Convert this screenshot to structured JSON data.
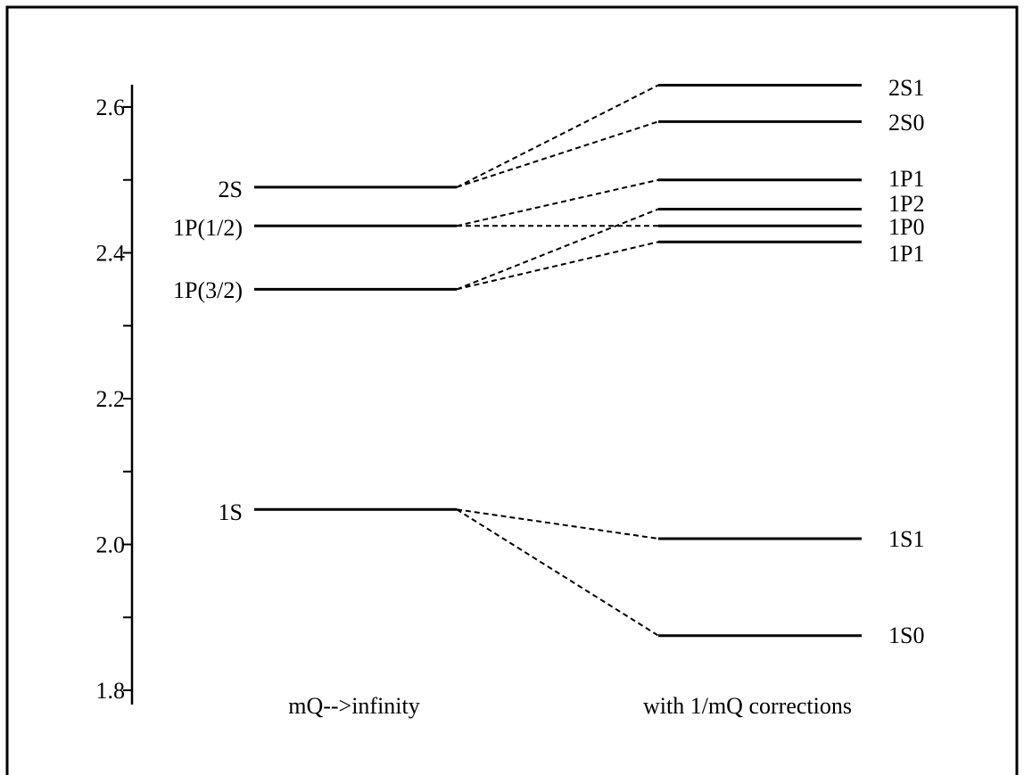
{
  "chart_data": {
    "type": "level-diagram",
    "title": "",
    "ylabel": "",
    "ylim": [
      1.8,
      2.63
    ],
    "yticks": [
      {
        "value": 1.8,
        "label": "1.8"
      },
      {
        "value": 2.0,
        "label": "2.0"
      },
      {
        "value": 2.2,
        "label": "2.2"
      },
      {
        "value": 2.4,
        "label": "2.4"
      },
      {
        "value": 2.6,
        "label": "2.6"
      }
    ],
    "minor_ticks": [
      1.9,
      2.1,
      2.3,
      2.5
    ],
    "columns": [
      {
        "label": "mQ-->infinity"
      },
      {
        "label": "with 1/mQ corrections"
      }
    ],
    "left_levels": [
      {
        "label": "2S",
        "value": 2.49
      },
      {
        "label": "1P(1/2)",
        "value": 2.437
      },
      {
        "label": "1P(3/2)",
        "value": 2.35
      },
      {
        "label": "1S",
        "value": 2.048
      }
    ],
    "right_levels": [
      {
        "label": "2S1",
        "value": 2.63
      },
      {
        "label": "2S0",
        "value": 2.58
      },
      {
        "label": "1P1",
        "value": 2.5
      },
      {
        "label": "1P2",
        "value": 2.46
      },
      {
        "label": "1P0",
        "value": 2.437
      },
      {
        "label": "1P1",
        "value": 2.415
      },
      {
        "label": "1S1",
        "value": 2.008
      },
      {
        "label": "1S0",
        "value": 1.875
      }
    ],
    "transitions": [
      {
        "from": 0,
        "to": 0
      },
      {
        "from": 0,
        "to": 1
      },
      {
        "from": 1,
        "to": 2
      },
      {
        "from": 1,
        "to": 4
      },
      {
        "from": 2,
        "to": 3
      },
      {
        "from": 2,
        "to": 5
      },
      {
        "from": 3,
        "to": 6
      },
      {
        "from": 3,
        "to": 7
      }
    ]
  }
}
